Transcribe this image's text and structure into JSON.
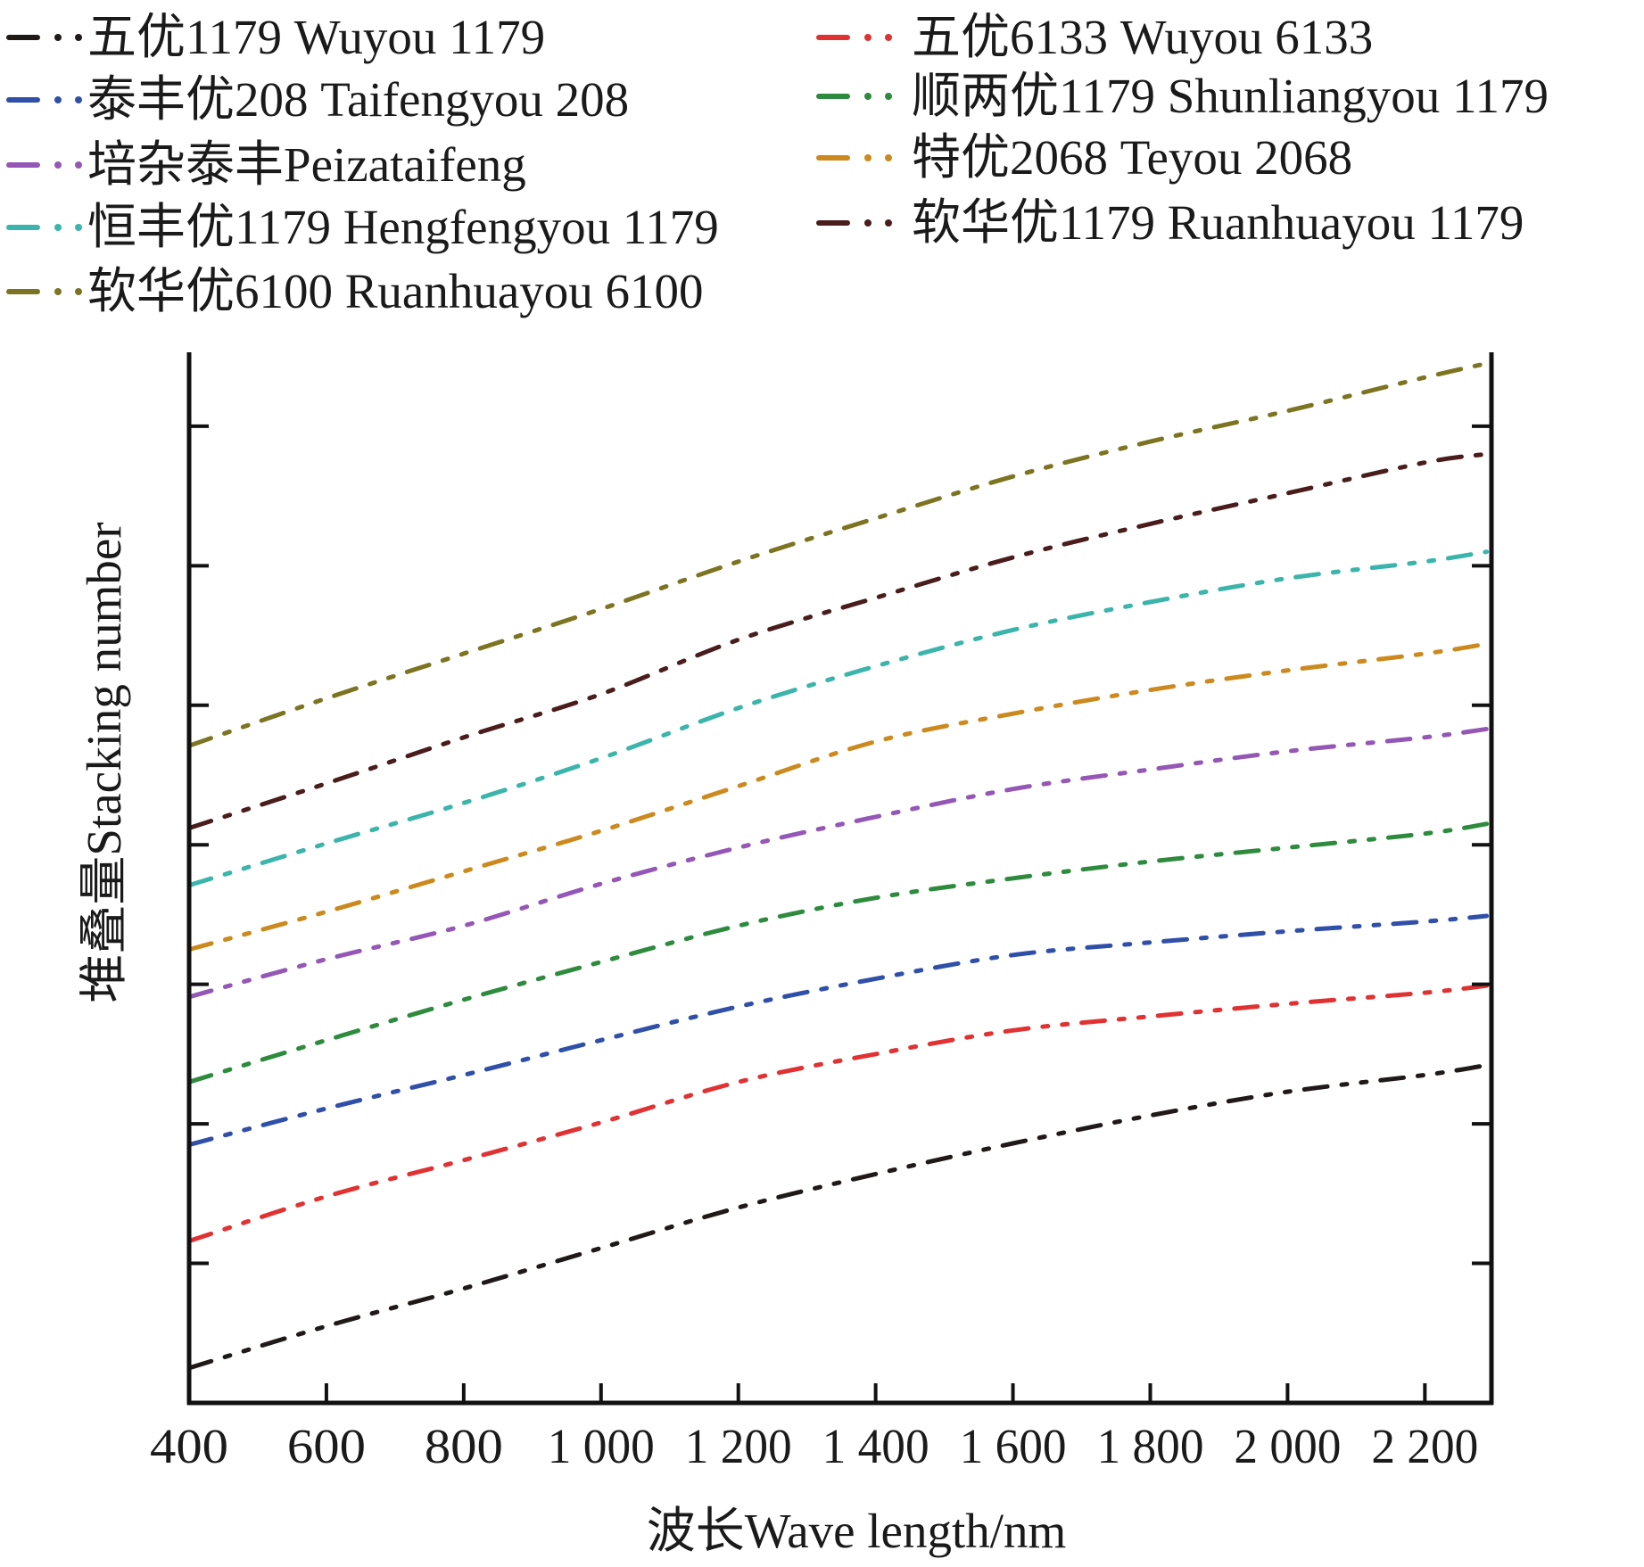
{
  "chart_data": {
    "type": "line",
    "title": "",
    "xlabel": "波长Wave length/nm",
    "ylabel": "堆叠量Stacking number",
    "xlim": [
      400,
      2297
    ],
    "ylim": [
      0,
      7.53
    ],
    "x_ticks": [
      400,
      600,
      800,
      1000,
      1200,
      1400,
      1600,
      1800,
      2000,
      2200
    ],
    "x_tick_labels": [
      "400",
      "600",
      "800",
      "1 000",
      "1 200",
      "1 400",
      "1 600",
      "1 800",
      "2 000",
      "2 200"
    ],
    "y_ticks": [
      1,
      2,
      3,
      4,
      5,
      6,
      7
    ],
    "y_tick_labels": [],
    "y_units_note": "arbitrary (unlabeled axis, tick spacing = 1)",
    "grid": false,
    "line_style": "dash-dot-dot",
    "legend_position": "top",
    "x": [
      400,
      600,
      800,
      1000,
      1200,
      1400,
      1600,
      1800,
      2000,
      2200,
      2290
    ],
    "series": [
      {
        "name": "五优1179 Wuyou 1179",
        "color": "#1f1a17",
        "values": [
          0.25,
          0.55,
          0.82,
          1.11,
          1.4,
          1.64,
          1.86,
          2.06,
          2.23,
          2.35,
          2.42
        ]
      },
      {
        "name": "泰丰优208 Taifengyou 208",
        "color": "#2f4fa8",
        "values": [
          1.85,
          2.11,
          2.35,
          2.6,
          2.84,
          3.04,
          3.21,
          3.3,
          3.38,
          3.45,
          3.49
        ]
      },
      {
        "name": "培杂泰丰Peizataifeng",
        "color": "#9457b5",
        "values": [
          2.91,
          3.18,
          3.42,
          3.72,
          3.98,
          4.2,
          4.4,
          4.54,
          4.67,
          4.77,
          4.83
        ]
      },
      {
        "name": "恒丰优1179 Hengfengyou 1179",
        "color": "#3bb5ab",
        "values": [
          3.71,
          4.01,
          4.3,
          4.62,
          4.98,
          5.28,
          5.54,
          5.74,
          5.91,
          6.03,
          6.1
        ]
      },
      {
        "name": "软华优6100 Ruanhuayou 6100",
        "color": "#7c7420",
        "values": [
          4.71,
          5.05,
          5.37,
          5.69,
          6.03,
          6.34,
          6.64,
          6.89,
          7.11,
          7.35,
          7.45
        ]
      },
      {
        "name": "五优6133 Wuyou 6133",
        "color": "#e03232",
        "values": [
          1.16,
          1.48,
          1.74,
          2.01,
          2.3,
          2.5,
          2.67,
          2.77,
          2.86,
          2.94,
          2.99
        ]
      },
      {
        "name": "顺两优1179 Shunliangyou 1179",
        "color": "#2e8b3e",
        "values": [
          2.3,
          2.6,
          2.89,
          3.16,
          3.42,
          3.62,
          3.76,
          3.88,
          3.98,
          4.08,
          4.15
        ]
      },
      {
        "name": "特优2068 Teyou 2068",
        "color": "#cc8a1e",
        "values": [
          3.25,
          3.52,
          3.81,
          4.1,
          4.42,
          4.74,
          4.94,
          5.11,
          5.25,
          5.37,
          5.44
        ]
      },
      {
        "name": "软华优1179 Ruanhuayou 1179",
        "color": "#4a1c1c",
        "values": [
          4.12,
          4.44,
          4.77,
          5.08,
          5.47,
          5.77,
          6.06,
          6.3,
          6.52,
          6.74,
          6.8
        ]
      }
    ]
  }
}
